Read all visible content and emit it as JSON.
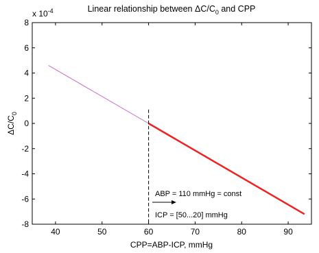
{
  "chart_data": {
    "type": "line",
    "title_main": "Linear relationship between ΔC/C",
    "title_sub": "0",
    "title_tail": " and CPP",
    "xlabel": "CPP=ABP-ICP, mmHg",
    "ylabel_main": "ΔC/C",
    "ylabel_sub": "0",
    "y_multiplier_base": "x 10",
    "y_multiplier_exp": "-4",
    "xlim": [
      35,
      95
    ],
    "ylim": [
      -8,
      8
    ],
    "xticks": [
      40,
      50,
      60,
      70,
      80,
      90
    ],
    "yticks": [
      -8,
      -6,
      -4,
      -2,
      0,
      2,
      4,
      6,
      8
    ],
    "grid": false,
    "series": [
      {
        "x": [
          38.5,
          60
        ],
        "y": [
          4.6,
          0
        ],
        "color": "#cc66cc"
      },
      {
        "x": [
          60,
          93.5
        ],
        "y": [
          0,
          -7.2
        ],
        "color": "#ee2222"
      }
    ],
    "vline_x": 60,
    "annotations": {
      "abp": "ABP = 110 mmHg = const",
      "icp": "ICP = [50...20] mmHg"
    }
  }
}
